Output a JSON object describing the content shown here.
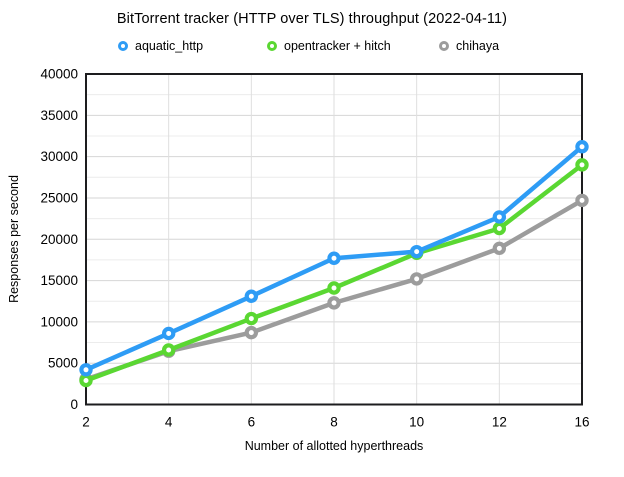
{
  "title": "BitTorrent tracker (HTTP over TLS) throughput (2022-04-11)",
  "legend": [
    {
      "label": "aquatic_http",
      "color": "#2E9CF5"
    },
    {
      "label": "opentracker + hitch",
      "color": "#5AD732"
    },
    {
      "label": "chihaya",
      "color": "#9C9C9C"
    }
  ],
  "chart_data": {
    "type": "line",
    "title": "BitTorrent tracker (HTTP over TLS) throughput (2022-04-11)",
    "xlabel": "Number of allotted hyperthreads",
    "ylabel": "Responses per second",
    "categories": [
      2,
      4,
      6,
      8,
      10,
      12,
      16
    ],
    "series": [
      {
        "name": "aquatic_http",
        "color": "#2E9CF5",
        "values": [
          4200,
          8600,
          13100,
          17700,
          18500,
          22700,
          31200
        ]
      },
      {
        "name": "opentracker + hitch",
        "color": "#5AD732",
        "values": [
          2900,
          6600,
          10400,
          14100,
          18300,
          21300,
          29000
        ]
      },
      {
        "name": "chihaya",
        "color": "#9C9C9C",
        "values": [
          3050,
          6450,
          8700,
          12300,
          15200,
          18900,
          24700
        ]
      }
    ],
    "ylim": [
      0,
      40000
    ],
    "y_major_step": 5000,
    "y_minor_step": 2500,
    "y_tick_labels": [
      "0",
      "5000",
      "10000",
      "15000",
      "20000",
      "25000",
      "30000",
      "35000",
      "40000"
    ],
    "x_tick_labels": [
      "2",
      "4",
      "6",
      "8",
      "10",
      "12",
      "16"
    ],
    "grid": true,
    "legend_position": "top",
    "marker": "ring",
    "colors": {
      "frame": "#1d1d1f",
      "grid_major": "#d6d6d6",
      "grid_minor": "#ececec",
      "grid_vertical": "#dedede",
      "background": "#ffffff"
    }
  }
}
